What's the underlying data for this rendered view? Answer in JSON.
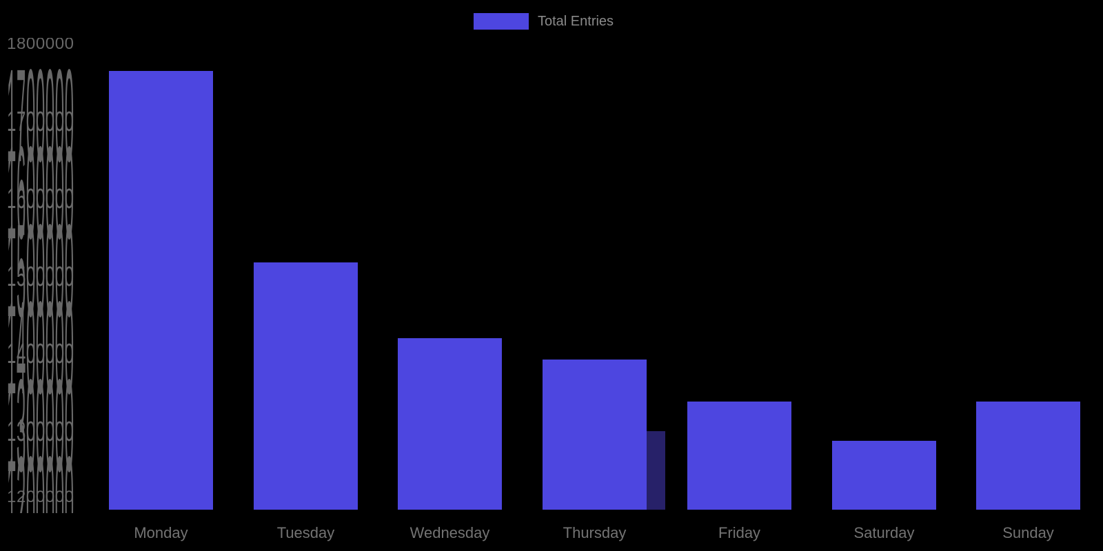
{
  "chart_data": {
    "type": "bar",
    "title": "",
    "categories": [
      "Monday",
      "Tuesday",
      "Wednesday",
      "Thursday",
      "Friday",
      "Saturday",
      "Sunday"
    ],
    "series": [
      {
        "name": "Total Entries",
        "color": "#4d46e0",
        "values": [
          1766000,
          1519000,
          1421000,
          1394000,
          1340000,
          1289000,
          1340000
        ]
      }
    ],
    "extra_bar": {
      "label": "",
      "value": 1301000,
      "color": "#272169",
      "position": "narrow unlabeled dark bar adjacent to right side of Thursday bar"
    },
    "y_axis": {
      "min": 1200000,
      "max": 1800000,
      "tick_step": 100000,
      "tick_labels": [
        "1800000",
        "1700000",
        "1600000",
        "1500000",
        "1400000",
        "1300000",
        "1200000"
      ],
      "rendering": "tick labels vertically stretched and overlapping (glitched axis)"
    },
    "legend": {
      "label": "Total Entries",
      "position": "top-center"
    },
    "grid": false,
    "background": "#000000"
  },
  "colors": {
    "background": "#000000",
    "bar": "#4d46e0",
    "extra_bar": "#272169",
    "y_tick_text": "#686868",
    "x_tick_text": "#737373",
    "legend_text": "#8a8a8a"
  }
}
